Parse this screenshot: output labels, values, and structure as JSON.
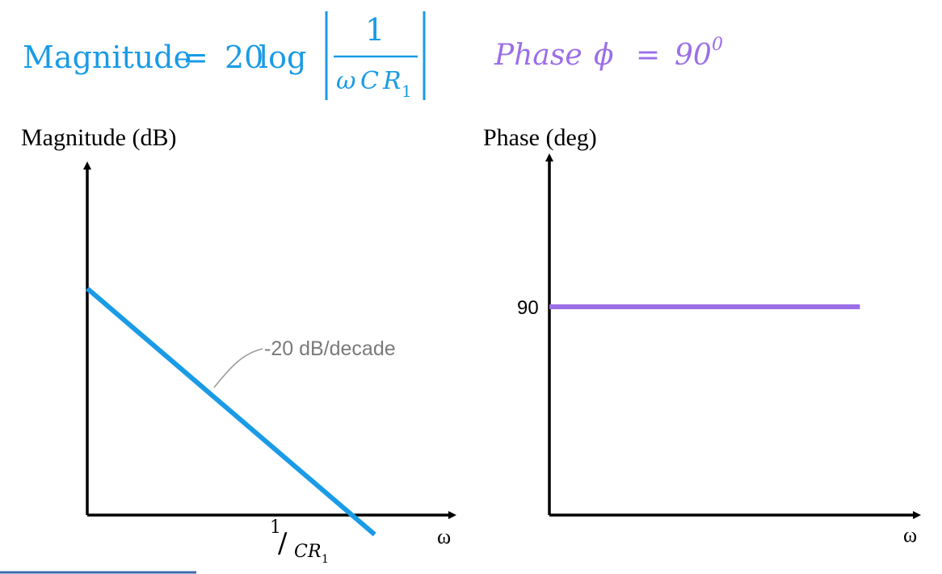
{
  "equations": {
    "magnitude": {
      "label": "Magnitude",
      "equals": "=",
      "coefficient": "20",
      "log": "log",
      "numerator": "1",
      "denominator_omega": "ω",
      "denominator_C": "C",
      "denominator_R": "R",
      "denominator_sub": "1"
    },
    "phase": {
      "label": "Phase",
      "symbol": "ϕ",
      "equals": "=",
      "value": "90",
      "superscript": "0"
    }
  },
  "colors": {
    "magnitude": "#1a9be6",
    "phase": "#9b6ee8",
    "axis": "#000000",
    "annotation": "#7a7a7a"
  },
  "chart_data": [
    {
      "type": "line",
      "title": "Magnitude",
      "ylabel": "Magnitude (dB)",
      "xlabel": "ω",
      "x_scale": "log",
      "x_tick_labels": {
        "cutoff_numerator": "1",
        "cutoff_slash": "/",
        "cutoff_C": "C",
        "cutoff_R": "R",
        "cutoff_sub": "1"
      },
      "series": [
        {
          "name": "magnitude",
          "slope_db_per_decade": -20,
          "x_decades_relative_to_cutoff": [
            -1.75,
            0,
            0.15
          ],
          "values_db": [
            35,
            0,
            -3
          ]
        }
      ],
      "xlim_decades": [
        -1.75,
        0.6
      ],
      "ylim_db": [
        -4,
        50
      ],
      "annotation": "-20 dB/decade"
    },
    {
      "type": "line",
      "title": "Phase",
      "ylabel": "Phase (deg)",
      "xlabel": "ω",
      "y_tick_labels": [
        "90"
      ],
      "series": [
        {
          "name": "phase",
          "x": [
            0,
            1
          ],
          "values": [
            90,
            90
          ]
        }
      ],
      "xlim": [
        0,
        1.15
      ],
      "ylim": [
        0,
        165
      ]
    }
  ]
}
